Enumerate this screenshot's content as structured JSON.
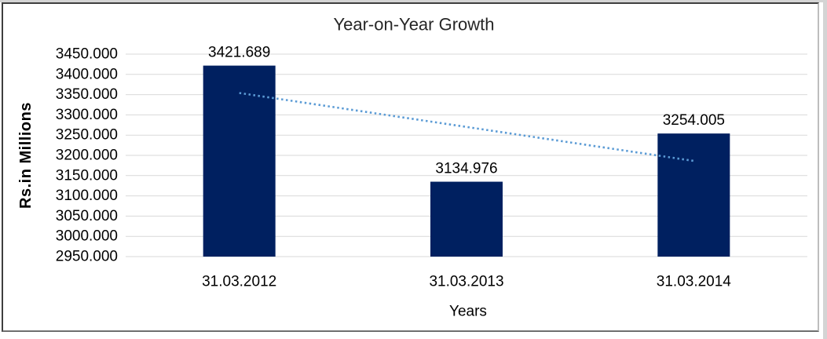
{
  "chart_data": {
    "type": "bar",
    "title": "Year-on-Year Growth",
    "xlabel": "Years",
    "ylabel": "Rs.in Millions",
    "categories": [
      "31.03.2012",
      "31.03.2013",
      "31.03.2014"
    ],
    "values": [
      3421.689,
      3134.976,
      3254.005
    ],
    "data_labels": [
      "3421.689",
      "3134.976",
      "3254.005"
    ],
    "ylim": [
      2950,
      3450
    ],
    "ytick_step": 50,
    "ytick_labels": [
      "3450.000",
      "3400.000",
      "3350.000",
      "3300.000",
      "3250.000",
      "3200.000",
      "3150.000",
      "3100.000",
      "3050.000",
      "3000.000",
      "2950.000"
    ],
    "grid": true,
    "legend_position": "none",
    "bar_color": "#002060",
    "gridline_color": "#d9d9d9",
    "label_color": "#000000",
    "title_color": "#262626",
    "trendline": {
      "type": "linear",
      "style": "dotted",
      "color": "#5b9bd5",
      "start_value": 3354.07,
      "end_value": 3186.38
    }
  }
}
